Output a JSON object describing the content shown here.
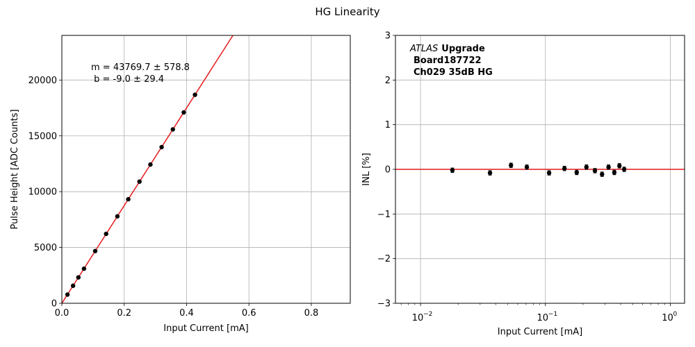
{
  "figure": {
    "title": "HG Linearity"
  },
  "chart_data": [
    {
      "type": "scatter",
      "panel": "left",
      "xlabel": "Input Current [mA]",
      "ylabel": "Pulse Height [ADC Counts]",
      "xlim": [
        0,
        0.925
      ],
      "ylim": [
        0,
        24000
      ],
      "xticks": [
        0,
        0.2,
        0.4,
        0.6,
        0.8
      ],
      "xtick_labels": [
        "0.0",
        "0.2",
        "0.4",
        "0.6",
        "0.8"
      ],
      "yticks": [
        0,
        5000,
        10000,
        15000,
        20000
      ],
      "ytick_labels": [
        "0",
        "5000",
        "10000",
        "15000",
        "20000"
      ],
      "grid": true,
      "series": [
        {
          "kind": "points",
          "color": "#000000",
          "x": [
            0.018,
            0.036,
            0.053,
            0.071,
            0.107,
            0.142,
            0.178,
            0.213,
            0.249,
            0.284,
            0.32,
            0.356,
            0.391,
            0.427
          ],
          "y": [
            780,
            1570,
            2320,
            3100,
            4680,
            6220,
            7790,
            9320,
            10900,
            12430,
            13990,
            15580,
            17100,
            18680
          ]
        },
        {
          "kind": "fit-line",
          "color": "#e41a1c",
          "slope": 43769.7,
          "intercept": -9.0
        }
      ],
      "annotations": {
        "fit_m": "m = 43769.7 ± 578.8",
        "fit_b": " b = -9.0 ± 29.4"
      }
    },
    {
      "type": "scatter",
      "panel": "right",
      "xlabel": "Input Current [mA]",
      "ylabel": "INL [%]",
      "xscale": "log",
      "xlim": [
        0.0063,
        1.3
      ],
      "ylim": [
        -3,
        3
      ],
      "xticks": [
        0.01,
        0.1,
        1
      ],
      "xtick_labels": [
        "10",
        "10",
        "10"
      ],
      "xtick_exponents": [
        "−2",
        "−1",
        "0"
      ],
      "yticks": [
        -3,
        -2,
        -1,
        0,
        1,
        2,
        3
      ],
      "ytick_labels": [
        "−3",
        "−2",
        "−1",
        "0",
        "1",
        "2",
        "3"
      ],
      "grid": true,
      "series": [
        {
          "kind": "points",
          "color": "#000000",
          "x": [
            0.018,
            0.036,
            0.053,
            0.071,
            0.107,
            0.142,
            0.178,
            0.213,
            0.249,
            0.284,
            0.32,
            0.356,
            0.391,
            0.427
          ],
          "y": [
            -0.02,
            -0.08,
            0.09,
            0.05,
            -0.08,
            0.02,
            -0.07,
            0.05,
            -0.03,
            -0.11,
            0.05,
            -0.07,
            0.08,
            0.0
          ],
          "yerr": 0.05
        },
        {
          "kind": "reference-line",
          "color": "#e41a1c",
          "y": 0
        }
      ],
      "annotations": {
        "atlas": "ATLAS",
        "upgrade": "Upgrade",
        "board": "Board187722",
        "channel": "Ch029 35dB HG"
      }
    }
  ]
}
